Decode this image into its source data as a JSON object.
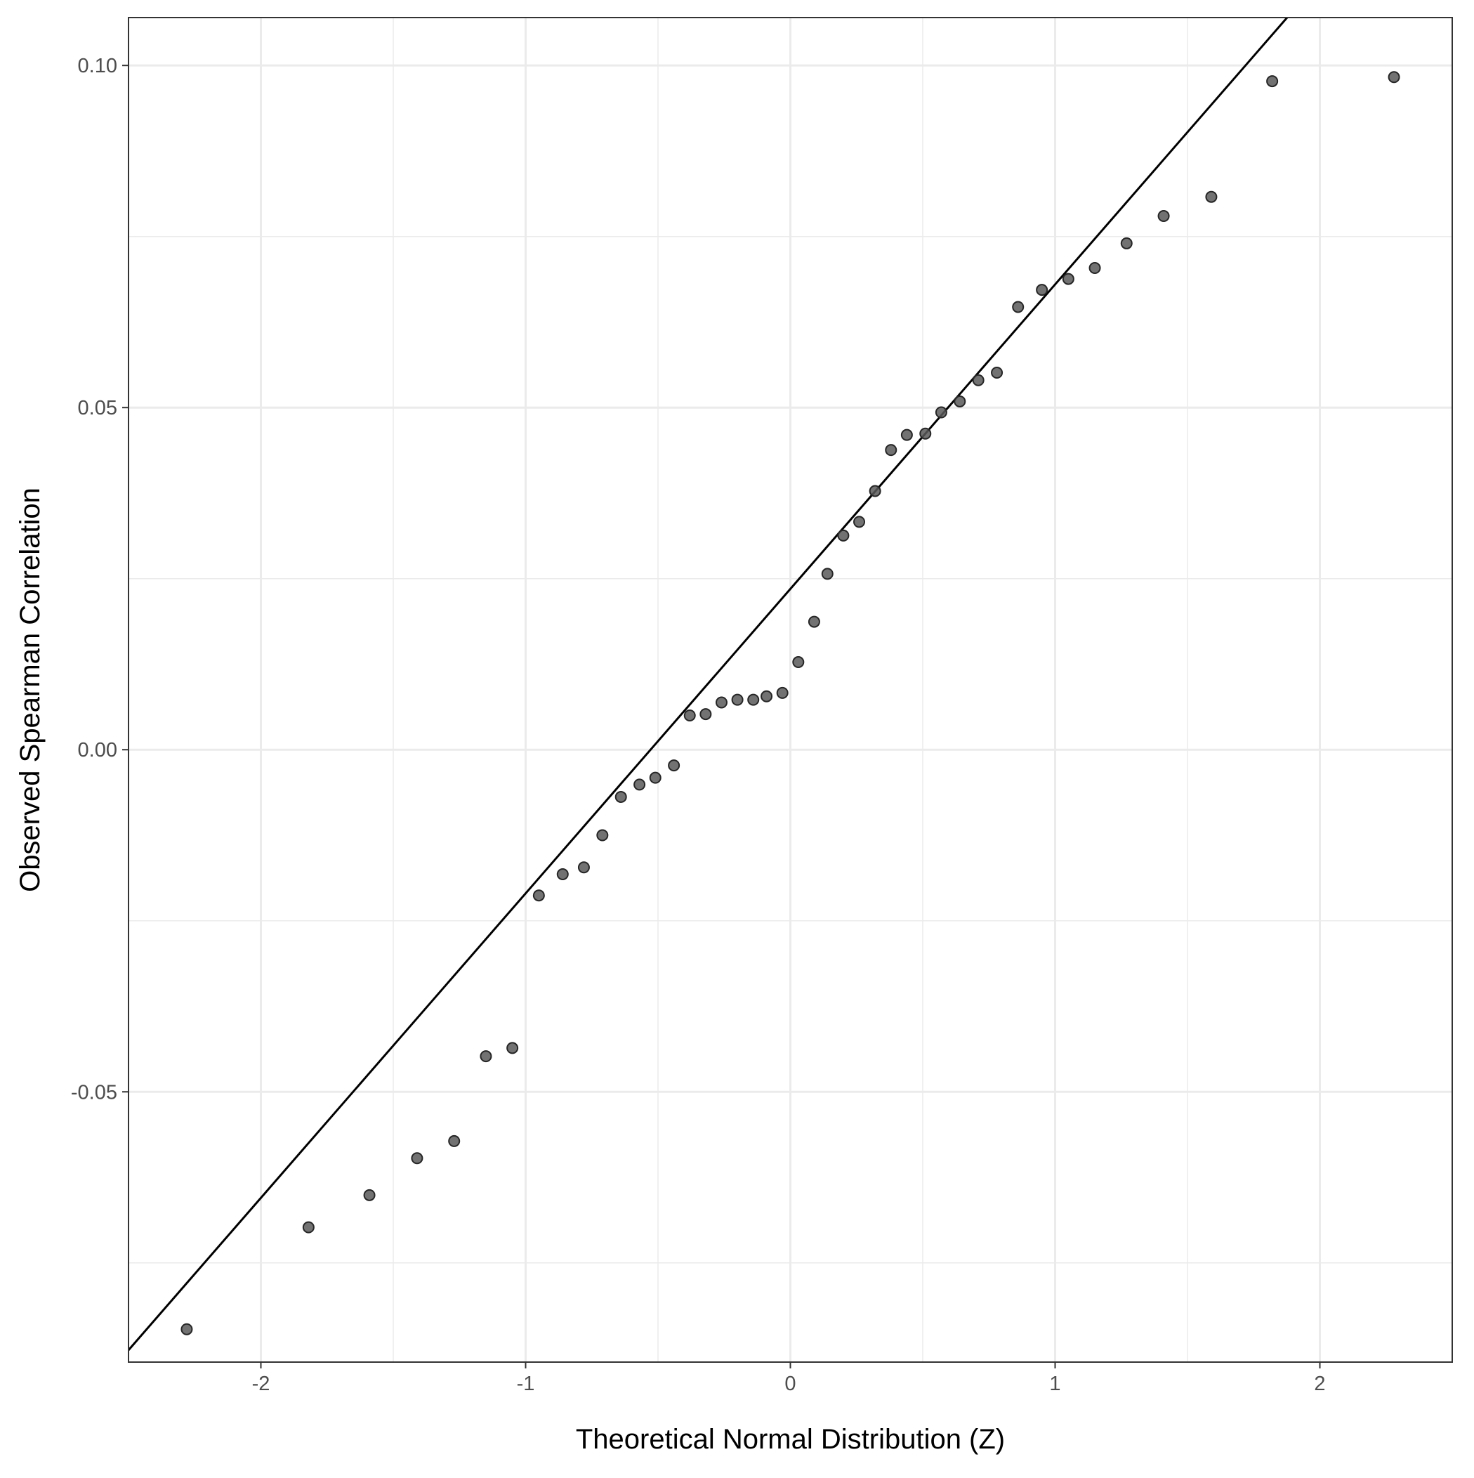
{
  "chart_data": {
    "type": "scatter",
    "title": "",
    "xlabel": "Theoretical Normal Distribution (Z)",
    "ylabel": "Observed Spearman Correlation",
    "xlim": [
      -2.5,
      2.5
    ],
    "ylim": [
      -0.0895,
      0.107
    ],
    "x_ticks": [
      -2,
      -1,
      0,
      1,
      2
    ],
    "x_tick_labels": [
      "-2",
      "-1",
      "0",
      "1",
      "2"
    ],
    "y_ticks": [
      -0.05,
      0.0,
      0.05,
      0.1
    ],
    "y_tick_labels": [
      "-0.05",
      "0.00",
      "0.05",
      "0.10"
    ],
    "grid": true,
    "legend": "none",
    "point_color": "#595959",
    "line_color": "#000000",
    "reference_line": {
      "intercept": 0.0235,
      "slope": 0.0445
    },
    "points": [
      {
        "x": -2.28,
        "y": -0.0847
      },
      {
        "x": -1.82,
        "y": -0.0698
      },
      {
        "x": -1.59,
        "y": -0.0651
      },
      {
        "x": -1.41,
        "y": -0.0597
      },
      {
        "x": -1.27,
        "y": -0.0572
      },
      {
        "x": -1.15,
        "y": -0.0448
      },
      {
        "x": -1.05,
        "y": -0.0436
      },
      {
        "x": -0.95,
        "y": -0.0213
      },
      {
        "x": -0.86,
        "y": -0.0182
      },
      {
        "x": -0.78,
        "y": -0.0172
      },
      {
        "x": -0.71,
        "y": -0.0125
      },
      {
        "x": -0.64,
        "y": -0.0069
      },
      {
        "x": -0.57,
        "y": -0.0051
      },
      {
        "x": -0.51,
        "y": -0.0041
      },
      {
        "x": -0.44,
        "y": -0.0023
      },
      {
        "x": -0.38,
        "y": 0.005
      },
      {
        "x": -0.32,
        "y": 0.0052
      },
      {
        "x": -0.26,
        "y": 0.0069
      },
      {
        "x": -0.2,
        "y": 0.0073
      },
      {
        "x": -0.14,
        "y": 0.0073
      },
      {
        "x": -0.09,
        "y": 0.0078
      },
      {
        "x": -0.03,
        "y": 0.0083
      },
      {
        "x": 0.03,
        "y": 0.0128
      },
      {
        "x": 0.09,
        "y": 0.0187
      },
      {
        "x": 0.14,
        "y": 0.0257
      },
      {
        "x": 0.2,
        "y": 0.0313
      },
      {
        "x": 0.26,
        "y": 0.0333
      },
      {
        "x": 0.32,
        "y": 0.0378
      },
      {
        "x": 0.38,
        "y": 0.0438
      },
      {
        "x": 0.44,
        "y": 0.046
      },
      {
        "x": 0.51,
        "y": 0.0462
      },
      {
        "x": 0.57,
        "y": 0.0493
      },
      {
        "x": 0.64,
        "y": 0.0509
      },
      {
        "x": 0.71,
        "y": 0.054
      },
      {
        "x": 0.78,
        "y": 0.0551
      },
      {
        "x": 0.86,
        "y": 0.0647
      },
      {
        "x": 0.95,
        "y": 0.0672
      },
      {
        "x": 1.05,
        "y": 0.0688
      },
      {
        "x": 1.15,
        "y": 0.0704
      },
      {
        "x": 1.27,
        "y": 0.074
      },
      {
        "x": 1.41,
        "y": 0.078
      },
      {
        "x": 1.59,
        "y": 0.0808
      },
      {
        "x": 1.82,
        "y": 0.0977
      },
      {
        "x": 2.28,
        "y": 0.0983
      }
    ]
  }
}
